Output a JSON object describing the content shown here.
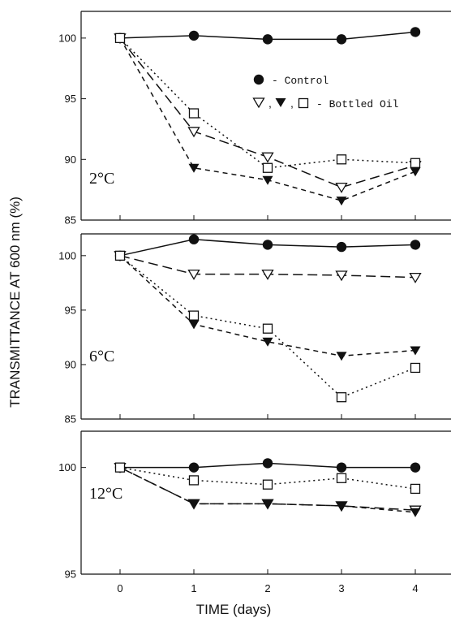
{
  "chart_data": {
    "type": "line",
    "ylabel": "TRANSMITTANCE AT 600 nm (%)",
    "xlabel": "TIME (days)",
    "x": [
      0,
      1,
      2,
      3,
      4
    ],
    "x_ticks": [
      "0",
      "1",
      "2",
      "3",
      "4"
    ],
    "legend": {
      "control_label": "- Control",
      "oil_label": "- Bottled Oil",
      "separator": ","
    },
    "panels": [
      {
        "temperature": "2°C",
        "ylim": [
          85,
          102
        ],
        "y_ticks": [
          "100",
          "95",
          "90",
          "85"
        ],
        "y_tick_values": [
          100,
          95,
          90,
          85
        ],
        "series": [
          {
            "marker": "filled-circle",
            "line": "solid",
            "values": [
              100.0,
              100.2,
              99.9,
              99.9,
              100.5
            ]
          },
          {
            "marker": "open-triangle",
            "line": "long-dash",
            "values": [
              100.0,
              92.3,
              90.2,
              87.7,
              89.5
            ]
          },
          {
            "marker": "filled-triangle",
            "line": "dash",
            "values": [
              100.0,
              89.3,
              88.3,
              86.6,
              89.0
            ]
          },
          {
            "marker": "open-square",
            "line": "dotted",
            "values": [
              100.0,
              93.8,
              89.3,
              90.0,
              89.7
            ]
          }
        ]
      },
      {
        "temperature": "6°C",
        "ylim": [
          85,
          102
        ],
        "y_ticks": [
          "100",
          "95",
          "90",
          "85"
        ],
        "y_tick_values": [
          100,
          95,
          90,
          85
        ],
        "series": [
          {
            "marker": "filled-circle",
            "line": "solid",
            "values": [
              100.0,
              101.5,
              101.0,
              100.8,
              101.0
            ]
          },
          {
            "marker": "open-triangle",
            "line": "long-dash",
            "values": [
              100.0,
              98.3,
              98.3,
              98.2,
              98.0
            ]
          },
          {
            "marker": "filled-triangle",
            "line": "dash",
            "values": [
              100.0,
              93.7,
              92.1,
              90.8,
              91.3
            ]
          },
          {
            "marker": "open-square",
            "line": "dotted",
            "values": [
              100.0,
              94.5,
              93.3,
              87.0,
              89.7
            ]
          }
        ]
      },
      {
        "temperature": "12°C",
        "ylim": [
          95,
          101.7
        ],
        "y_ticks": [
          "100",
          "95"
        ],
        "y_tick_values": [
          100,
          95
        ],
        "series": [
          {
            "marker": "filled-circle",
            "line": "solid",
            "values": [
              100.0,
              100.0,
              100.2,
              100.0,
              100.0
            ]
          },
          {
            "marker": "open-triangle",
            "line": "long-dash",
            "values": [
              100.0,
              98.3,
              98.3,
              98.2,
              98.0
            ]
          },
          {
            "marker": "filled-triangle",
            "line": "dash",
            "values": [
              100.0,
              98.3,
              98.3,
              98.2,
              97.9
            ]
          },
          {
            "marker": "open-square",
            "line": "dotted",
            "values": [
              100.0,
              99.4,
              99.2,
              99.5,
              99.0
            ]
          }
        ]
      }
    ],
    "colors": {
      "ink": "#111111",
      "background": "#ffffff"
    }
  }
}
